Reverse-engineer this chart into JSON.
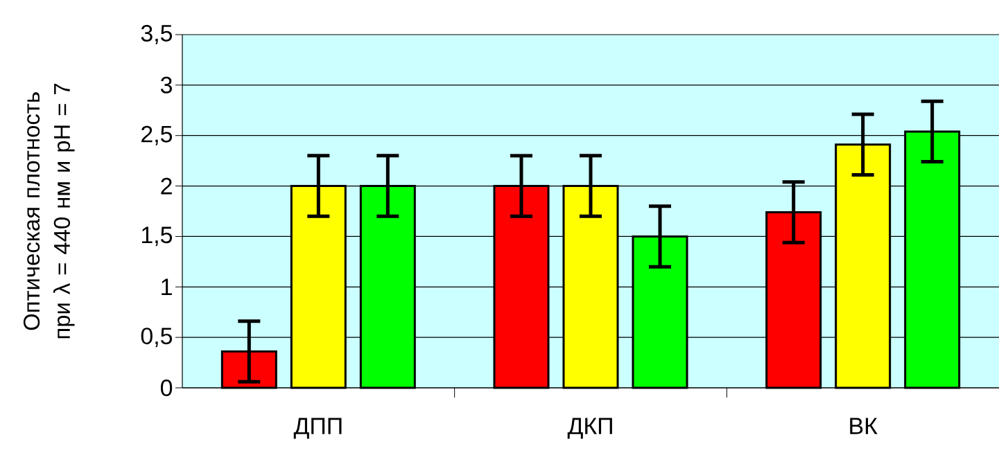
{
  "chart_data": {
    "type": "bar",
    "ylabel": "Оптическая плотность при λ = 440 нм и рН = 7",
    "categories": [
      "ДПП",
      "ДКП",
      "ВК"
    ],
    "series": [
      {
        "color": "#ff0000",
        "values": [
          0.36,
          2.0,
          1.74
        ],
        "errors": [
          0.3,
          0.3,
          0.3
        ]
      },
      {
        "color": "#ffff00",
        "values": [
          2.0,
          2.0,
          2.41
        ],
        "errors": [
          0.3,
          0.3,
          0.3
        ]
      },
      {
        "color": "#00ff00",
        "values": [
          2.0,
          1.5,
          2.54
        ],
        "errors": [
          0.3,
          0.3,
          0.3
        ]
      }
    ],
    "ylim": [
      0,
      3.5
    ],
    "yticks": [
      0,
      {
        "value": 0.5,
        "label": "0,5"
      },
      1,
      {
        "value": 1.5,
        "label": "1,5"
      },
      2,
      {
        "value": 2.5,
        "label": "2,5"
      },
      3,
      {
        "value": 3.5,
        "label": "3,5"
      }
    ],
    "grid": "y"
  }
}
